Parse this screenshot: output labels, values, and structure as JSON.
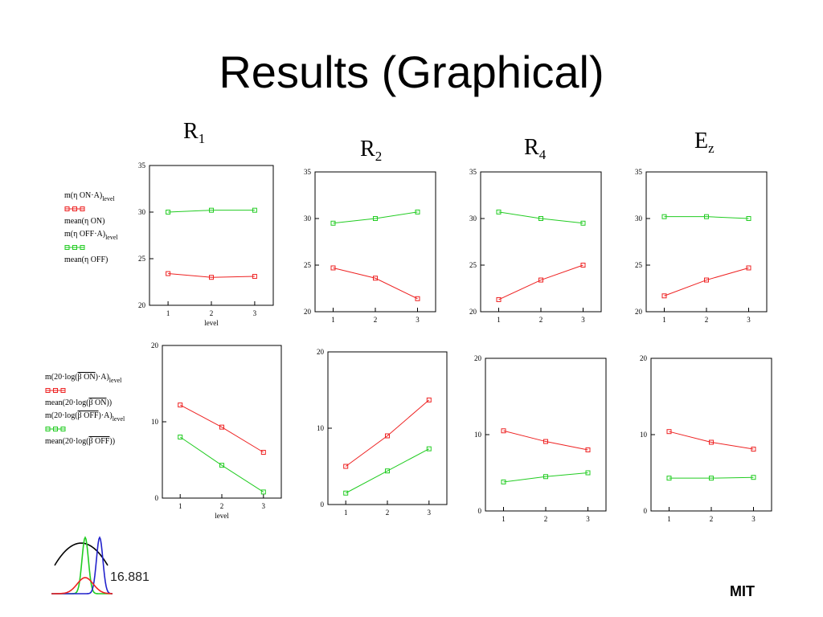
{
  "slide": {
    "title": "Results (Graphical)",
    "org": "MIT"
  },
  "columns": [
    {
      "base": "R",
      "sub": "1"
    },
    {
      "base": "R",
      "sub": "2"
    },
    {
      "base": "R",
      "sub": "4"
    },
    {
      "base": "E",
      "sub": "z"
    }
  ],
  "legend_top": {
    "line1_a": "m(",
    "line1_b": "η ON",
    "line1_c": "·A)",
    "line1_sub": "level",
    "line2": "mean(η ON)",
    "line3_a": "m(",
    "line3_b": "η OFF",
    "line3_c": "·A)",
    "line3_sub": "level",
    "line4": "mean(η OFF)"
  },
  "legend_bottom": {
    "line1_a": "m(20·log(",
    "line1_b": "β ON",
    "line1_c": ")·A)",
    "line1_sub": "level",
    "line2_a": "mean(20·log(",
    "line2_b": "β ON",
    "line2_c": "))",
    "line3_a": "m(20·log(",
    "line3_b": "β OFF",
    "line3_c": ")·A)",
    "line3_sub": "level",
    "line4_a": "mean(20·log(",
    "line4_b": "β OFF",
    "line4_c": "))"
  },
  "colors": {
    "on": "#ee2222",
    "off": "#22cc22",
    "gaussian_center": "#ee2222",
    "gaussian_left": "#22cc22",
    "gaussian_right": "#2222cc",
    "parabola": "#000000"
  },
  "logo": {
    "number": "16.881"
  },
  "chart_data": [
    {
      "type": "line",
      "id": "top-R1",
      "x": [
        1,
        2,
        3
      ],
      "xticks": [
        "1",
        "2",
        "3"
      ],
      "xlabel": "level",
      "ylim": [
        20,
        35
      ],
      "yticks": [
        "20",
        "25",
        "30",
        "35"
      ],
      "series": [
        {
          "values": [
            23.4,
            23.0,
            23.1
          ],
          "color": "#ee2222"
        },
        {
          "values": [
            30.0,
            30.2,
            30.2
          ],
          "color": "#22cc22"
        }
      ]
    },
    {
      "type": "line",
      "id": "top-R2",
      "x": [
        1,
        2,
        3
      ],
      "xticks": [
        "1",
        "2",
        "3"
      ],
      "xlabel": "",
      "ylim": [
        20,
        35
      ],
      "yticks": [
        "20",
        "25",
        "30",
        "35"
      ],
      "series": [
        {
          "values": [
            24.7,
            23.6,
            21.4
          ],
          "color": "#ee2222"
        },
        {
          "values": [
            29.5,
            30.0,
            30.7
          ],
          "color": "#22cc22"
        }
      ]
    },
    {
      "type": "line",
      "id": "top-R4",
      "x": [
        1,
        2,
        3
      ],
      "xticks": [
        "1",
        "2",
        "3"
      ],
      "xlabel": "",
      "ylim": [
        20,
        35
      ],
      "yticks": [
        "20",
        "25",
        "30",
        "35"
      ],
      "series": [
        {
          "values": [
            21.3,
            23.4,
            25.0
          ],
          "color": "#ee2222"
        },
        {
          "values": [
            30.7,
            30.0,
            29.5
          ],
          "color": "#22cc22"
        }
      ]
    },
    {
      "type": "line",
      "id": "top-Ez",
      "x": [
        1,
        2,
        3
      ],
      "xticks": [
        "1",
        "2",
        "3"
      ],
      "xlabel": "",
      "ylim": [
        20,
        35
      ],
      "yticks": [
        "20",
        "25",
        "30",
        "35"
      ],
      "series": [
        {
          "values": [
            21.7,
            23.4,
            24.7
          ],
          "color": "#ee2222"
        },
        {
          "values": [
            30.2,
            30.2,
            30.0
          ],
          "color": "#22cc22"
        }
      ]
    },
    {
      "type": "line",
      "id": "bottom-R1",
      "x": [
        1,
        2,
        3
      ],
      "xticks": [
        "1",
        "2",
        "3"
      ],
      "xlabel": "level",
      "ylim": [
        0,
        20
      ],
      "yticks": [
        "0",
        "10",
        "20"
      ],
      "series": [
        {
          "values": [
            12.2,
            9.3,
            6.0
          ],
          "color": "#ee2222"
        },
        {
          "values": [
            8.0,
            4.3,
            0.8
          ],
          "color": "#22cc22"
        }
      ]
    },
    {
      "type": "line",
      "id": "bottom-R2",
      "x": [
        1,
        2,
        3
      ],
      "xticks": [
        "1",
        "2",
        "3"
      ],
      "xlabel": "",
      "ylim": [
        0,
        20
      ],
      "yticks": [
        "0",
        "10",
        "20"
      ],
      "series": [
        {
          "values": [
            5.0,
            9.0,
            13.7
          ],
          "color": "#ee2222"
        },
        {
          "values": [
            1.5,
            4.4,
            7.3
          ],
          "color": "#22cc22"
        }
      ]
    },
    {
      "type": "line",
      "id": "bottom-R4",
      "x": [
        1,
        2,
        3
      ],
      "xticks": [
        "1",
        "2",
        "3"
      ],
      "xlabel": "",
      "ylim": [
        0,
        20
      ],
      "yticks": [
        "0",
        "10",
        "20"
      ],
      "series": [
        {
          "values": [
            10.5,
            9.1,
            8.0
          ],
          "color": "#ee2222"
        },
        {
          "values": [
            3.8,
            4.5,
            5.0
          ],
          "color": "#22cc22"
        }
      ]
    },
    {
      "type": "line",
      "id": "bottom-Ez",
      "x": [
        1,
        2,
        3
      ],
      "xticks": [
        "1",
        "2",
        "3"
      ],
      "xlabel": "",
      "ylim": [
        0,
        20
      ],
      "yticks": [
        "0",
        "10",
        "20"
      ],
      "series": [
        {
          "values": [
            10.4,
            9.0,
            8.1
          ],
          "color": "#ee2222"
        },
        {
          "values": [
            4.3,
            4.3,
            4.4
          ],
          "color": "#22cc22"
        }
      ]
    }
  ]
}
